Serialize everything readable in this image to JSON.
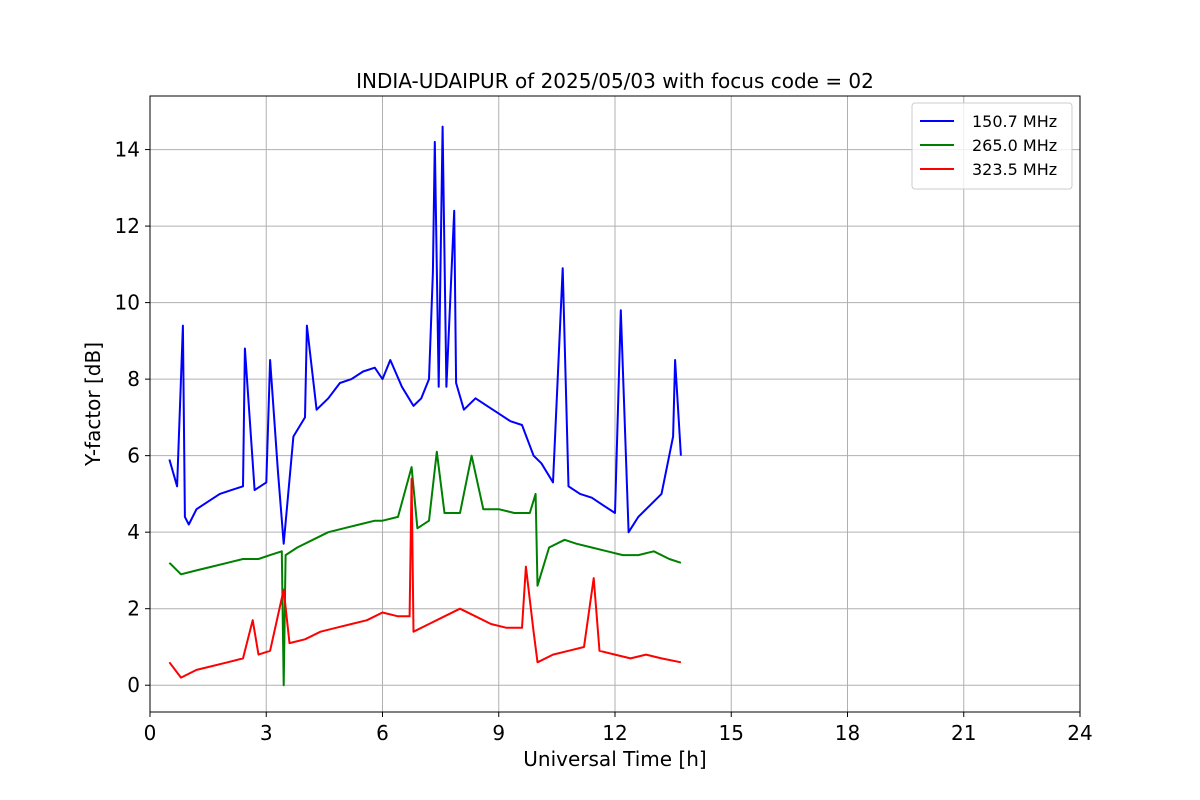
{
  "chart_data": {
    "type": "line",
    "title": "INDIA-UDAIPUR of 2025/05/03 with focus code = 02",
    "xlabel": "Universal Time [h]",
    "ylabel": "Y-factor [dB]",
    "xlim": [
      0,
      24
    ],
    "ylim": [
      -0.7,
      15.4
    ],
    "xticks": [
      0,
      3,
      6,
      9,
      12,
      15,
      18,
      21,
      24
    ],
    "yticks": [
      0,
      2,
      4,
      6,
      8,
      10,
      12,
      14
    ],
    "grid": true,
    "legend_position": "top-right",
    "series": [
      {
        "name": "150.7 MHz",
        "color": "#0000ff",
        "x": [
          0.5,
          0.7,
          0.85,
          0.9,
          1.0,
          1.2,
          1.5,
          1.8,
          2.1,
          2.4,
          2.45,
          2.7,
          3.0,
          3.1,
          3.3,
          3.45,
          3.7,
          4.0,
          4.05,
          4.3,
          4.6,
          4.9,
          5.2,
          5.5,
          5.8,
          6.0,
          6.2,
          6.5,
          6.8,
          7.0,
          7.2,
          7.3,
          7.35,
          7.45,
          7.55,
          7.65,
          7.85,
          7.9,
          8.1,
          8.4,
          8.7,
          9.0,
          9.3,
          9.6,
          9.9,
          10.1,
          10.4,
          10.65,
          10.8,
          11.1,
          11.4,
          11.7,
          12.0,
          12.15,
          12.35,
          12.6,
          12.9,
          13.2,
          13.5,
          13.55,
          13.7
        ],
        "values": [
          5.9,
          5.2,
          9.4,
          4.4,
          4.2,
          4.6,
          4.8,
          5.0,
          5.1,
          5.2,
          8.8,
          5.1,
          5.3,
          8.5,
          5.6,
          3.7,
          6.5,
          7.0,
          9.4,
          7.2,
          7.5,
          7.9,
          8.0,
          8.2,
          8.3,
          8.0,
          8.5,
          7.8,
          7.3,
          7.5,
          8.0,
          10.8,
          14.2,
          7.8,
          14.6,
          7.8,
          12.4,
          7.9,
          7.2,
          7.5,
          7.3,
          7.1,
          6.9,
          6.8,
          6.0,
          5.8,
          5.3,
          10.9,
          5.2,
          5.0,
          4.9,
          4.7,
          4.5,
          9.8,
          4.0,
          4.4,
          4.7,
          5.0,
          6.5,
          8.5,
          6.0
        ]
      },
      {
        "name": "265.0 MHz",
        "color": "#008000",
        "x": [
          0.5,
          0.8,
          1.2,
          1.6,
          2.0,
          2.4,
          2.8,
          3.1,
          3.4,
          3.45,
          3.5,
          3.8,
          4.2,
          4.6,
          5.0,
          5.4,
          5.8,
          6.0,
          6.4,
          6.75,
          6.9,
          7.2,
          7.4,
          7.6,
          8.0,
          8.3,
          8.6,
          9.0,
          9.4,
          9.8,
          9.95,
          10.0,
          10.3,
          10.7,
          11.0,
          11.4,
          11.8,
          12.2,
          12.6,
          13.0,
          13.4,
          13.7
        ],
        "values": [
          3.2,
          2.9,
          3.0,
          3.1,
          3.2,
          3.3,
          3.3,
          3.4,
          3.5,
          0.0,
          3.4,
          3.6,
          3.8,
          4.0,
          4.1,
          4.2,
          4.3,
          4.3,
          4.4,
          5.7,
          4.1,
          4.3,
          6.1,
          4.5,
          4.5,
          6.0,
          4.6,
          4.6,
          4.5,
          4.5,
          5.0,
          2.6,
          3.6,
          3.8,
          3.7,
          3.6,
          3.5,
          3.4,
          3.4,
          3.5,
          3.3,
          3.2
        ]
      },
      {
        "name": "323.5 MHz",
        "color": "#ff0000",
        "x": [
          0.5,
          0.8,
          1.2,
          1.6,
          2.0,
          2.4,
          2.65,
          2.8,
          3.1,
          3.45,
          3.6,
          4.0,
          4.4,
          4.8,
          5.2,
          5.6,
          6.0,
          6.4,
          6.7,
          6.75,
          6.8,
          7.2,
          7.6,
          8.0,
          8.4,
          8.8,
          9.2,
          9.6,
          9.7,
          9.9,
          10.0,
          10.4,
          10.8,
          11.2,
          11.45,
          11.6,
          12.0,
          12.4,
          12.8,
          13.2,
          13.7
        ],
        "values": [
          0.6,
          0.2,
          0.4,
          0.5,
          0.6,
          0.7,
          1.7,
          0.8,
          0.9,
          2.5,
          1.1,
          1.2,
          1.4,
          1.5,
          1.6,
          1.7,
          1.9,
          1.8,
          1.8,
          5.4,
          1.4,
          1.6,
          1.8,
          2.0,
          1.8,
          1.6,
          1.5,
          1.5,
          3.1,
          1.4,
          0.6,
          0.8,
          0.9,
          1.0,
          2.8,
          0.9,
          0.8,
          0.7,
          0.8,
          0.7,
          0.6
        ]
      }
    ]
  }
}
